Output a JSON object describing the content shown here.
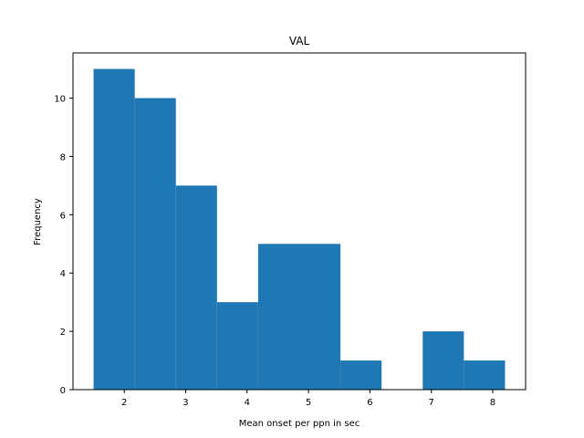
{
  "chart_data": {
    "type": "bar",
    "title": "VAL",
    "xlabel": "Mean onset per ppn in sec",
    "ylabel": "Frequency",
    "bins": [
      {
        "x0": 1.5,
        "x1": 2.17,
        "value": 11
      },
      {
        "x0": 2.17,
        "x1": 2.84,
        "value": 10
      },
      {
        "x0": 2.84,
        "x1": 3.51,
        "value": 7
      },
      {
        "x0": 3.51,
        "x1": 4.18,
        "value": 3
      },
      {
        "x0": 4.18,
        "x1": 4.85,
        "value": 5
      },
      {
        "x0": 4.85,
        "x1": 5.52,
        "value": 5
      },
      {
        "x0": 5.52,
        "x1": 6.19,
        "value": 1
      },
      {
        "x0": 6.19,
        "x1": 6.86,
        "value": 0
      },
      {
        "x0": 6.86,
        "x1": 7.53,
        "value": 2
      },
      {
        "x0": 7.53,
        "x1": 8.2,
        "value": 1
      }
    ],
    "xlim": [
      1.165,
      8.535
    ],
    "ylim": [
      0,
      11.55
    ],
    "xticks": [
      2,
      3,
      4,
      5,
      6,
      7,
      8
    ],
    "yticks": [
      0,
      2,
      4,
      6,
      8,
      10
    ],
    "bar_color": "#1f77b4",
    "grid": false,
    "legend": "none"
  }
}
